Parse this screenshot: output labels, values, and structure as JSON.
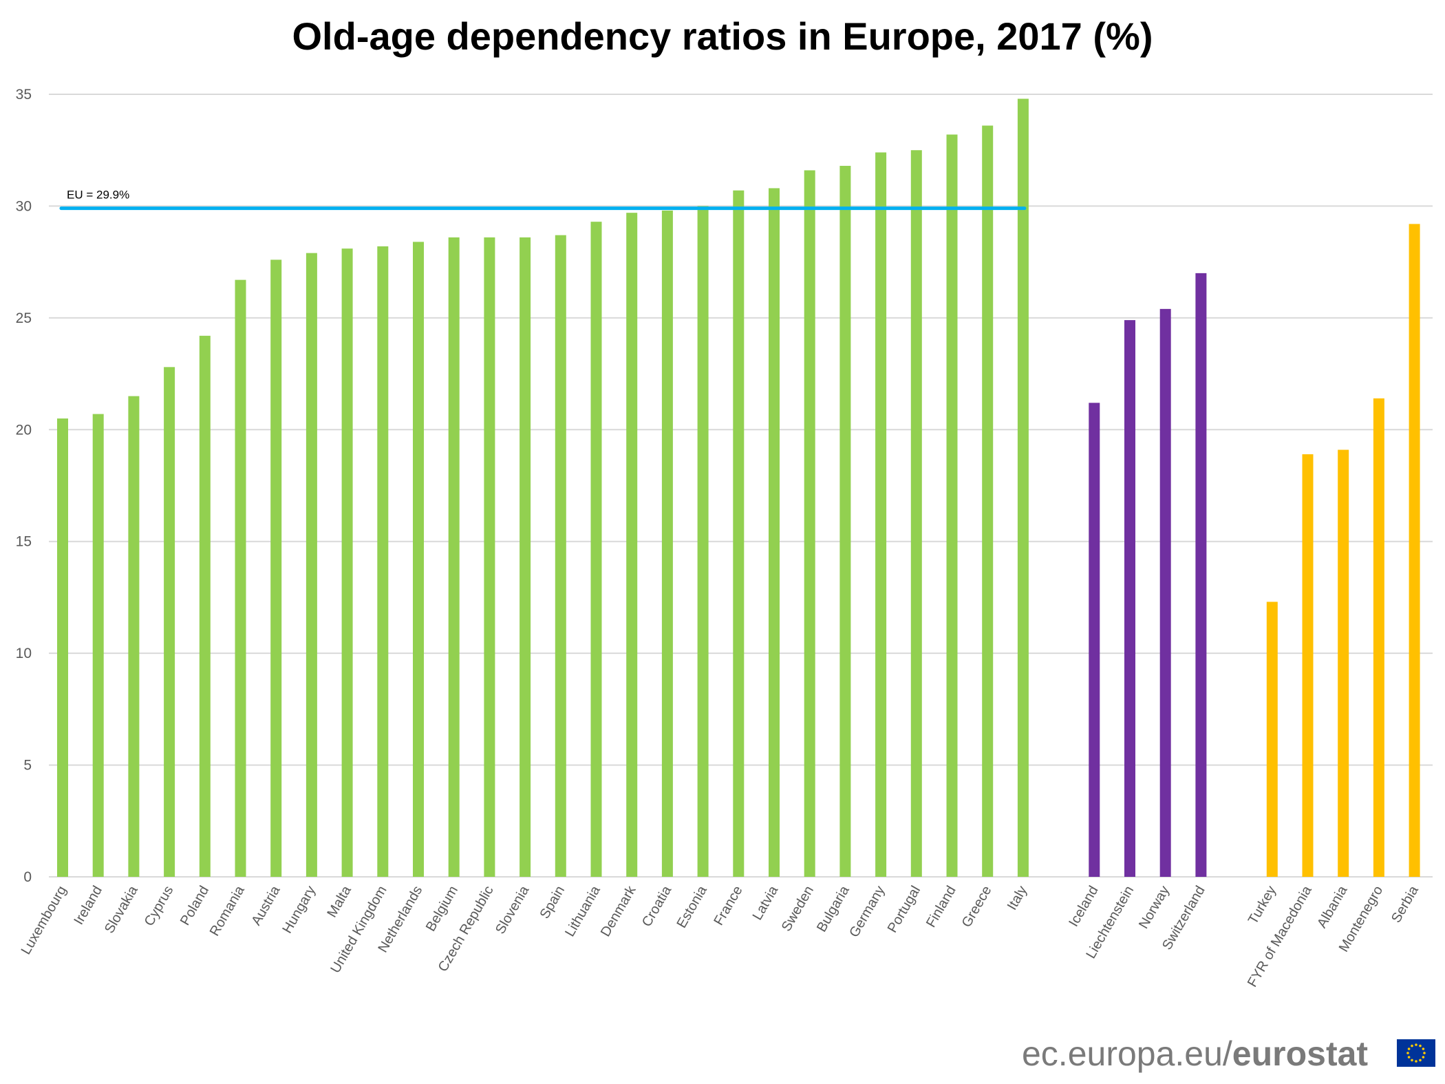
{
  "chart_data": {
    "type": "bar",
    "title": "Old-age dependency ratios in Europe, 2017 (%)",
    "xlabel": "",
    "ylabel": "",
    "ylim": [
      0,
      35
    ],
    "yticks": [
      0,
      5,
      10,
      15,
      20,
      25,
      30,
      35
    ],
    "grid": true,
    "groups": [
      {
        "color": "#92d050",
        "categories": [
          "Luxembourg",
          "Ireland",
          "Slovakia",
          "Cyprus",
          "Poland",
          "Romania",
          "Austria",
          "Hungary",
          "Malta",
          "United Kingdom",
          "Netherlands",
          "Belgium",
          "Czech Republic",
          "Slovenia",
          "Spain",
          "Lithuania",
          "Denmark",
          "Croatia",
          "Estonia",
          "France",
          "Latvia",
          "Sweden",
          "Bulgaria",
          "Germany",
          "Portugal",
          "Finland",
          "Greece",
          "Italy"
        ],
        "values": [
          20.5,
          20.7,
          21.5,
          22.8,
          24.2,
          26.7,
          27.6,
          27.9,
          28.1,
          28.2,
          28.4,
          28.6,
          28.6,
          28.6,
          28.7,
          29.3,
          29.7,
          29.8,
          30.0,
          30.7,
          30.8,
          31.6,
          31.8,
          32.4,
          32.5,
          33.2,
          33.6,
          34.8
        ]
      },
      {
        "color": "#7030a0",
        "categories": [
          "Iceland",
          "Liechtenstein",
          "Norway",
          "Switzerland"
        ],
        "values": [
          21.2,
          24.9,
          25.4,
          27.0
        ]
      },
      {
        "color": "#ffc000",
        "categories": [
          "Turkey",
          "FYR of Macedonia",
          "Albania",
          "Montenegro",
          "Serbia"
        ],
        "values": [
          12.3,
          18.9,
          19.1,
          21.4,
          29.2
        ]
      }
    ],
    "reference_line": {
      "label": "EU = 29.9%",
      "value": 29.9,
      "color": "#00b0f0"
    }
  },
  "footer": {
    "site": "ec.europa.eu/",
    "brand": "eurostat",
    "logo": "eu-flag-icon"
  }
}
